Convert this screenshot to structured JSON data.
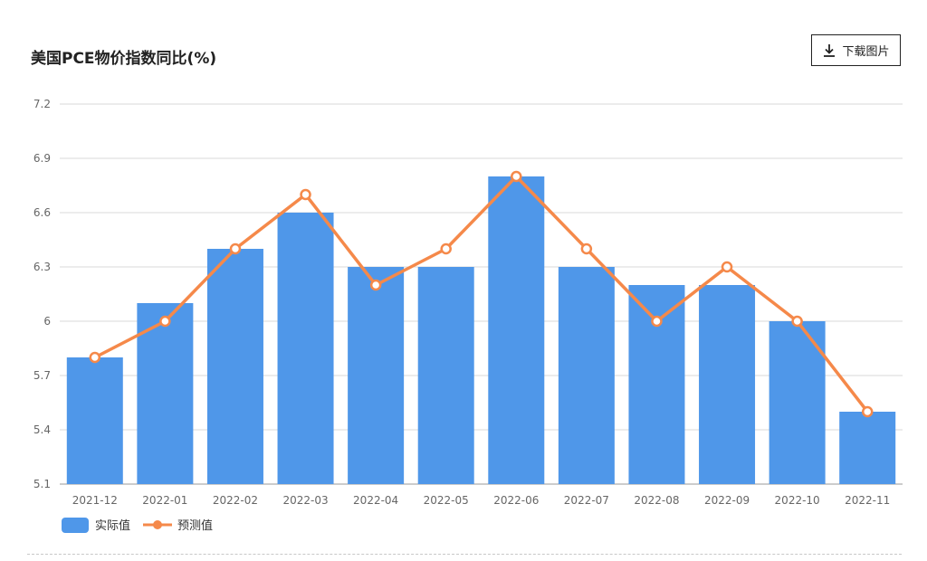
{
  "header": {
    "title": "美国PCE物价指数同比(%)",
    "download_label": "下载图片",
    "download_icon": "download-icon"
  },
  "colors": {
    "bar": "#4f97e9",
    "line": "#f5894a",
    "grid": "#d9d9d9",
    "axis_text": "#666666"
  },
  "chart_data": {
    "type": "bar",
    "categories": [
      "2021-12",
      "2022-01",
      "2022-02",
      "2022-03",
      "2022-04",
      "2022-05",
      "2022-06",
      "2022-07",
      "2022-08",
      "2022-09",
      "2022-10",
      "2022-11"
    ],
    "series": [
      {
        "name": "实际值",
        "type": "bar",
        "values": [
          5.8,
          6.1,
          6.4,
          6.6,
          6.3,
          6.3,
          6.8,
          6.3,
          6.2,
          6.2,
          6.0,
          5.5
        ]
      },
      {
        "name": "预测值",
        "type": "line",
        "values": [
          5.8,
          6.0,
          6.4,
          6.7,
          6.2,
          6.4,
          6.8,
          6.4,
          6.0,
          6.3,
          6.0,
          5.5
        ]
      }
    ],
    "yticks": [
      "5.1",
      "5.4",
      "5.7",
      "6",
      "6.3",
      "6.6",
      "6.9",
      "7.2"
    ],
    "ylim": [
      5.1,
      7.2
    ],
    "grid": true,
    "legend_position": "bottom-left"
  }
}
